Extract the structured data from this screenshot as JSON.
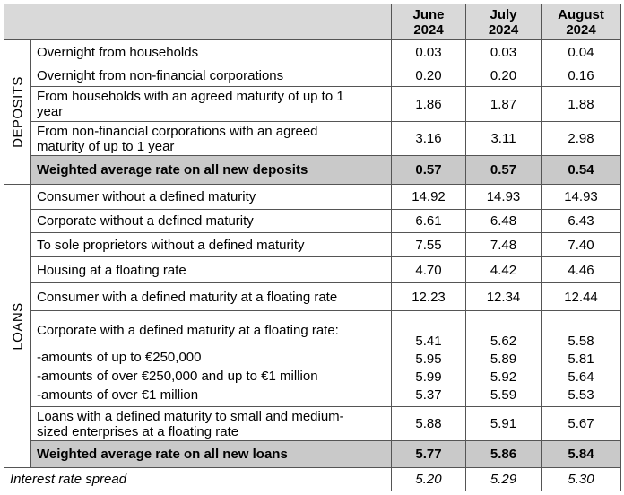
{
  "table": {
    "columns": [
      [
        "June",
        "2024"
      ],
      [
        "July",
        "2024"
      ],
      [
        "August",
        "2024"
      ]
    ],
    "sections": [
      {
        "name": "DEPOSITS",
        "rows": [
          {
            "label": [
              "Overnight from households"
            ],
            "values": [
              "0.03",
              "0.03",
              "0.04"
            ]
          },
          {
            "label": [
              "Overnight from non-financial corporations"
            ],
            "values": [
              "0.20",
              "0.20",
              "0.16"
            ]
          },
          {
            "label": [
              "From households with an agreed maturity of up to 1",
              "year"
            ],
            "values": [
              "1.86",
              "1.87",
              "1.88"
            ]
          },
          {
            "label": [
              "From non-financial corporations with an agreed",
              "maturity of up to 1 year"
            ],
            "values": [
              "3.16",
              "3.11",
              "2.98"
            ]
          }
        ],
        "total": {
          "label": "Weighted average rate on all new deposits",
          "values": [
            "0.57",
            "0.57",
            "0.54"
          ]
        }
      },
      {
        "name": "LOANS",
        "rows": [
          {
            "label": [
              "Consumer without a defined maturity"
            ],
            "values": [
              "14.92",
              "14.93",
              "14.93"
            ]
          },
          {
            "label": [
              "Corporate without a defined maturity"
            ],
            "values": [
              "6.61",
              "6.48",
              "6.43"
            ]
          },
          {
            "label": [
              "To sole proprietors without a defined maturity"
            ],
            "values": [
              "7.55",
              "7.48",
              "7.40"
            ]
          },
          {
            "label": [
              "Housing at a floating rate"
            ],
            "values": [
              "4.70",
              "4.42",
              "4.46"
            ]
          },
          {
            "label": [
              "Consumer with a defined maturity at a floating rate"
            ],
            "values": [
              "12.23",
              "12.34",
              "12.44"
            ]
          },
          {
            "label": [
              "Corporate with a defined maturity at a floating rate:",
              "-amounts of up to €250,000",
              "-amounts of over €250,000 and up to €1 million",
              "-amounts of over €1 million"
            ],
            "values": [
              [
                "5.41",
                "5.95",
                "5.99",
                "5.37"
              ],
              [
                "5.62",
                "5.89",
                "5.92",
                "5.59"
              ],
              [
                "5.58",
                "5.81",
                "5.64",
                "5.53"
              ]
            ]
          },
          {
            "label": [
              "Loans with a defined maturity to small and medium-",
              "sized enterprises at a floating rate"
            ],
            "values": [
              "5.88",
              "5.91",
              "5.67"
            ]
          }
        ],
        "total": {
          "label": "Weighted average rate on all new loans",
          "values": [
            "5.77",
            "5.86",
            "5.84"
          ]
        }
      }
    ],
    "spread": {
      "label": "Interest rate spread",
      "values": [
        "5.20",
        "5.29",
        "5.30"
      ]
    }
  }
}
